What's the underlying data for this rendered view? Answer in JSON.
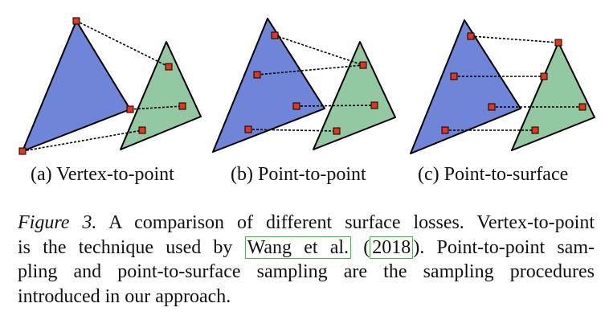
{
  "figure": {
    "colors": {
      "blue_triangle": "#6f86d8",
      "green_triangle": "#92c9a3",
      "point": "#e8351a",
      "outline": "#000000"
    },
    "panels": [
      {
        "id": "a",
        "label": "(a) Vertex-to-point"
      },
      {
        "id": "b",
        "label": "(b) Point-to-point"
      },
      {
        "id": "c",
        "label": "(c) Point-to-surface"
      }
    ]
  },
  "caption": {
    "figure_label": "Figure 3.",
    "line1_rest": " A comparison of different surface losses. Vertex-to-point",
    "line2_pre": "is the technique used by ",
    "citation_author": "Wang et al.",
    "citation_open": " (",
    "citation_year": "2018",
    "citation_close": ").",
    "line2_post": " Point-to-point sam-",
    "line3": "pling and point-to-surface sampling are the sampling procedures",
    "line4": "introduced in our approach."
  }
}
